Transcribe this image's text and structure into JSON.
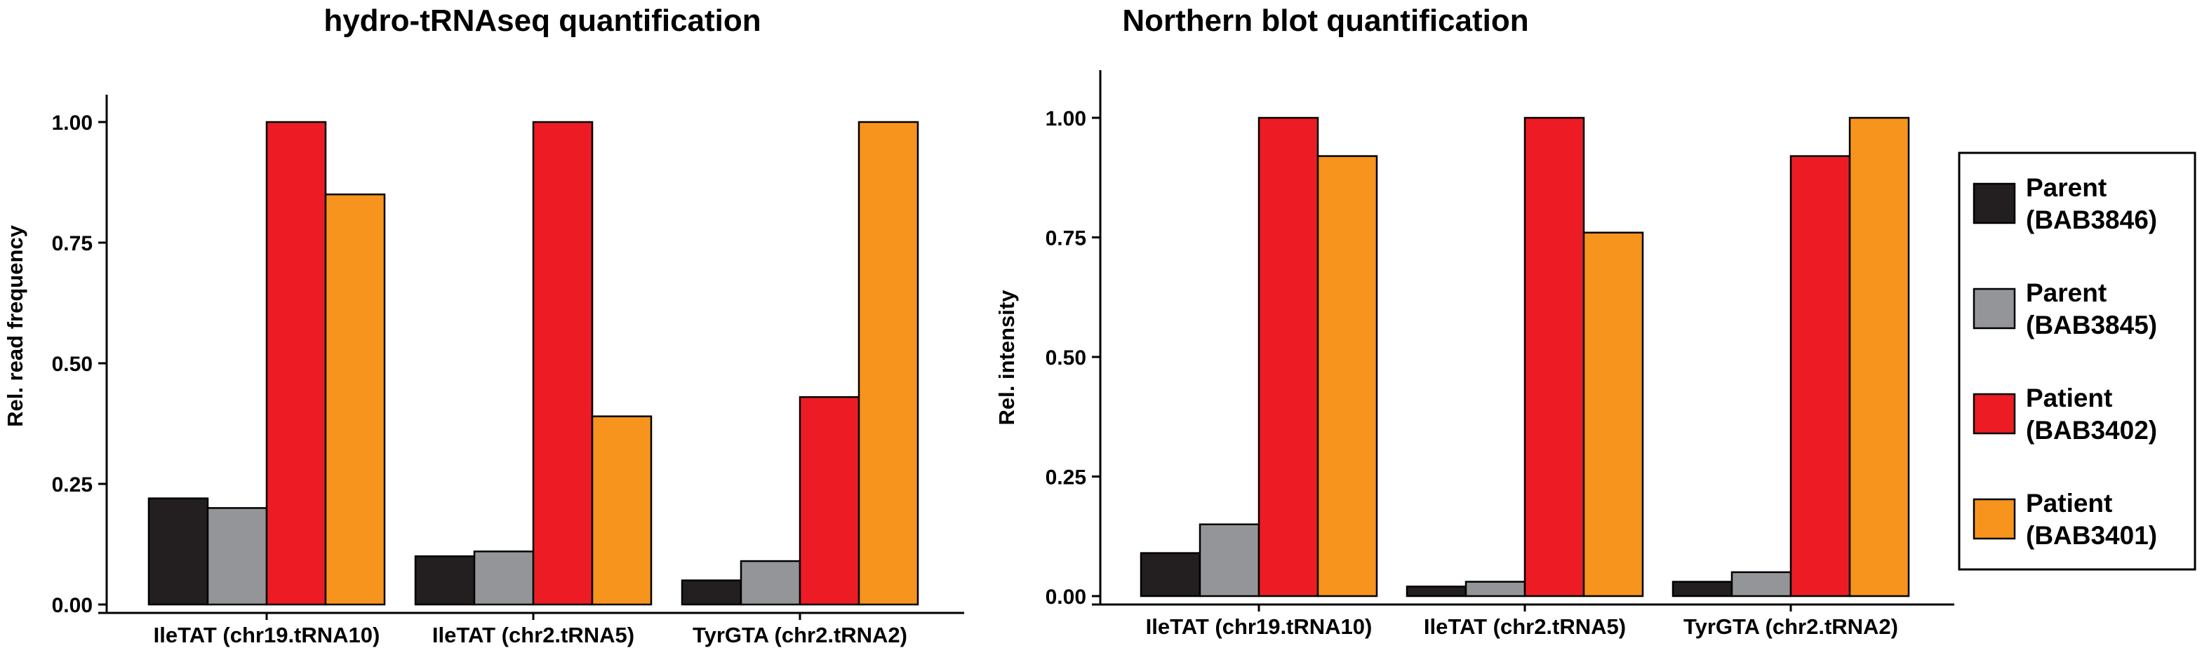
{
  "chart_data": [
    {
      "type": "bar",
      "title": "hydro-tRNAseq quantification",
      "ylabel": "Rel. read frequency",
      "xlabel": "",
      "ylim": [
        0,
        1.05
      ],
      "yticks": [
        "0.00",
        "0.25",
        "0.50",
        "0.75",
        "1.00"
      ],
      "categories": [
        "IleTAT (chr19.tRNA10)",
        "IleTAT (chr2.tRNA5)",
        "TyrGTA (chr2.tRNA2)"
      ],
      "series": [
        {
          "name": "Parent (BAB3846)",
          "color": "#231f20",
          "values": [
            0.22,
            0.1,
            0.05
          ]
        },
        {
          "name": "Parent (BAB3845)",
          "color": "#939598",
          "values": [
            0.2,
            0.11,
            0.09
          ]
        },
        {
          "name": "Patient (BAB3402)",
          "color": "#ed1c24",
          "values": [
            1.0,
            1.0,
            0.43
          ]
        },
        {
          "name": "Patient (BAB3401)",
          "color": "#f7941d",
          "values": [
            0.85,
            0.39,
            1.0
          ]
        }
      ],
      "grid": false
    },
    {
      "type": "bar",
      "title": "Northern blot quantification",
      "ylabel": "Rel. intensity",
      "xlabel": "",
      "ylim": [
        0,
        1.1
      ],
      "yticks": [
        "0.00",
        "0.25",
        "0.50",
        "0.75",
        "1.00"
      ],
      "categories": [
        "IleTAT (chr19.tRNA10)",
        "IleTAT (chr2.tRNA5)",
        "TyrGTA (chr2.tRNA2)"
      ],
      "series": [
        {
          "name": "Parent (BAB3846)",
          "color": "#231f20",
          "values": [
            0.09,
            0.02,
            0.03
          ]
        },
        {
          "name": "Parent (BAB3845)",
          "color": "#939598",
          "values": [
            0.15,
            0.03,
            0.05
          ]
        },
        {
          "name": "Patient (BAB3402)",
          "color": "#ed1c24",
          "values": [
            1.0,
            1.0,
            0.92
          ]
        },
        {
          "name": "Patient (BAB3401)",
          "color": "#f7941d",
          "values": [
            0.92,
            0.76,
            1.0
          ]
        }
      ],
      "grid": false
    }
  ],
  "legend": {
    "placement": "right",
    "items": [
      {
        "line1": "Parent",
        "line2": "(BAB3846)",
        "color": "#231f20"
      },
      {
        "line1": "Parent",
        "line2": "(BAB3845)",
        "color": "#939598"
      },
      {
        "line1": "Patient",
        "line2": "(BAB3402)",
        "color": "#ed1c24"
      },
      {
        "line1": "Patient",
        "line2": "(BAB3401)",
        "color": "#f7941d"
      }
    ]
  }
}
